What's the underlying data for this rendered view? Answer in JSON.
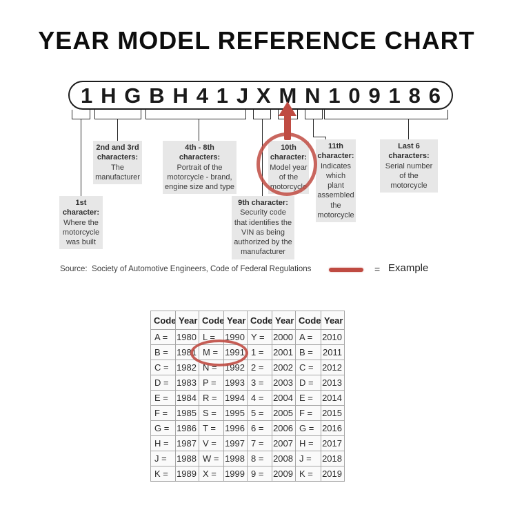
{
  "title": "YEAR MODEL REFERENCE CHART",
  "vin": {
    "characters": [
      "1",
      "H",
      "G",
      "B",
      "H",
      "4",
      "1",
      "J",
      "X",
      "M",
      "N",
      "1",
      "0",
      "9",
      "1",
      "8",
      "6"
    ]
  },
  "callouts": {
    "first": {
      "title": "1st character:",
      "body": "Where the motorcycle was built"
    },
    "second_third": {
      "title": "2nd and 3rd characters:",
      "body": "The manufacturer"
    },
    "fourth_eighth": {
      "title": "4th - 8th characters:",
      "body": "Portrait of the motorcycle - brand, engine size and type"
    },
    "ninth": {
      "title": "9th character:",
      "body": "Security code that identifies the VIN as being authorized by the manufacturer"
    },
    "tenth": {
      "title": "10th character:",
      "body": "Model year of the motorcycle"
    },
    "eleventh": {
      "title": "11th character:",
      "body": "Indicates which plant assembled the motorcycle"
    },
    "last_six": {
      "title": "Last 6 characters:",
      "body": "Serial number of the motorcycle"
    }
  },
  "source_line": "Source:  Society of Automotive Engineers, Code of Federal Regulations",
  "legend": {
    "equals": "=",
    "label": "Example"
  },
  "colors": {
    "highlight_red": "#bf4b42",
    "box_gray": "#e7e7e7"
  },
  "year_table": {
    "headers": [
      "Code",
      "Year",
      "Code",
      "Year",
      "Code",
      "Year",
      "Code",
      "Year"
    ],
    "rows": [
      [
        "A =",
        "1980",
        "L =",
        "1990",
        "Y =",
        "2000",
        "A =",
        "2010"
      ],
      [
        "B =",
        "1981",
        "M =",
        "1991",
        "1 =",
        "2001",
        "B =",
        "2011"
      ],
      [
        "C =",
        "1982",
        "N =",
        "1992",
        "2 =",
        "2002",
        "C =",
        "2012"
      ],
      [
        "D =",
        "1983",
        "P =",
        "1993",
        "3 =",
        "2003",
        "D =",
        "2013"
      ],
      [
        "E =",
        "1984",
        "R =",
        "1994",
        "4 =",
        "2004",
        "E =",
        "2014"
      ],
      [
        "F =",
        "1985",
        "S =",
        "1995",
        "5 =",
        "2005",
        "F =",
        "2015"
      ],
      [
        "G =",
        "1986",
        "T =",
        "1996",
        "6 =",
        "2006",
        "G =",
        "2016"
      ],
      [
        "H =",
        "1987",
        "V =",
        "1997",
        "7 =",
        "2007",
        "H =",
        "2017"
      ],
      [
        "J =",
        "1988",
        "W =",
        "1998",
        "8 =",
        "2008",
        "J =",
        "2018"
      ],
      [
        "K =",
        "1989",
        "X =",
        "1999",
        "9 =",
        "2009",
        "K =",
        "2019"
      ]
    ],
    "highlighted_cells": {
      "row_index": 1,
      "columns": [
        2,
        3
      ],
      "meaning": "M = 1991"
    }
  }
}
